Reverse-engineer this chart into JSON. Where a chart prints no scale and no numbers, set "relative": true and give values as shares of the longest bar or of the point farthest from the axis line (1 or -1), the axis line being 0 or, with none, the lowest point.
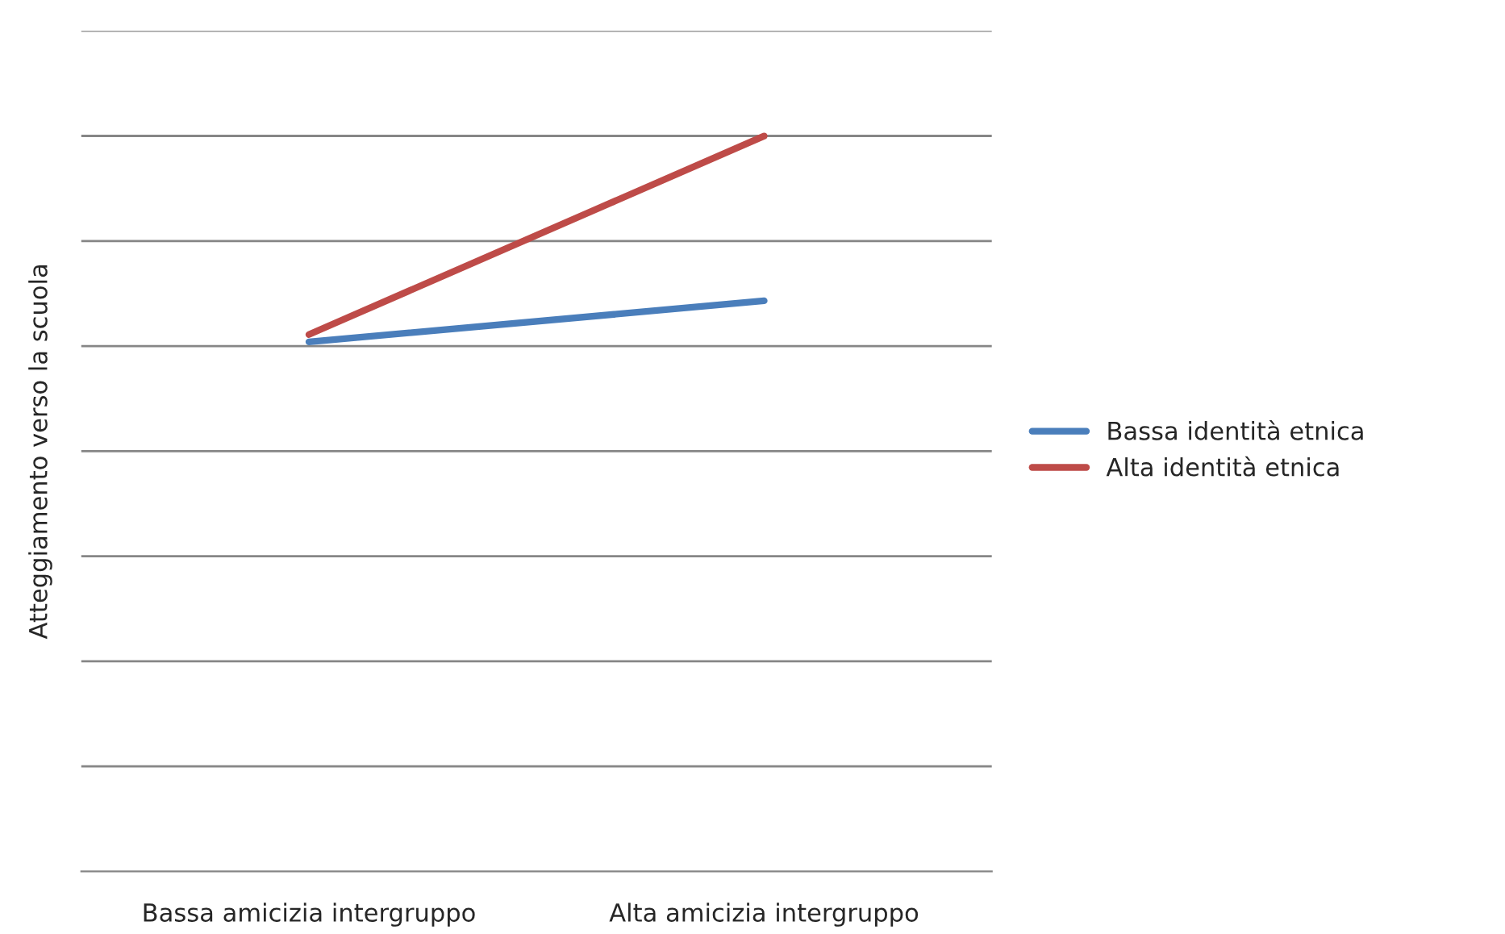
{
  "chart_data": {
    "type": "line",
    "relative": true,
    "ylabel": "Atteggiamento verso la scuola",
    "categories": [
      "Bassa amicizia intergruppo",
      "Alta amicizia intergruppo"
    ],
    "series": [
      {
        "name": "Bassa identità etnica",
        "color": "#4a7ebb",
        "values": [
          0.72,
          0.776
        ]
      },
      {
        "name": "Alta identità etnica",
        "color": "#be4b48",
        "values": [
          0.73,
          1
        ]
      }
    ],
    "grid": "y",
    "legend": "right",
    "marker": "none",
    "line_style": "solid"
  }
}
